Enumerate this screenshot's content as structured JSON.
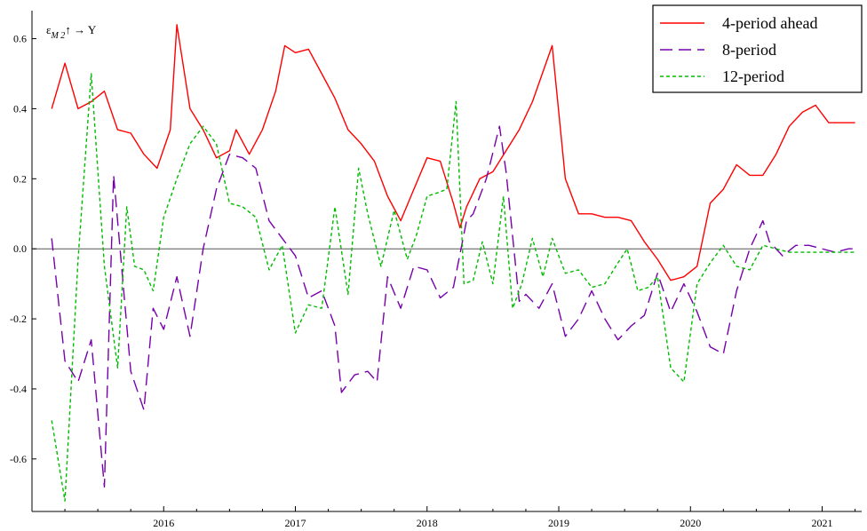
{
  "chart_data": {
    "type": "line",
    "ylabel": "ε_{M2}↑ → Y",
    "ylabel_parts": {
      "base": "ε",
      "sub": "M 2",
      "rest": "↑ → Y"
    },
    "xlim": [
      2015.0,
      2021.3
    ],
    "ylim": [
      -0.75,
      0.68
    ],
    "x_ticks": [
      2016,
      2017,
      2018,
      2019,
      2020,
      2021
    ],
    "y_ticks": [
      -0.6,
      -0.4,
      -0.2,
      0.0,
      0.2,
      0.4,
      0.6
    ],
    "y_tick_labels": [
      "-0.6",
      "-0.4",
      "-0.2",
      "0.0",
      "0.2",
      "0.4",
      "0.6"
    ],
    "zero_line": true,
    "legend_position": "top-right",
    "series": [
      {
        "name": "4-period ahead",
        "color": "#ff0000",
        "style": "solid",
        "x": [
          2015.15,
          2015.25,
          2015.35,
          2015.45,
          2015.55,
          2015.65,
          2015.75,
          2015.85,
          2015.95,
          2016.05,
          2016.1,
          2016.2,
          2016.3,
          2016.4,
          2016.5,
          2016.55,
          2016.65,
          2016.75,
          2016.85,
          2016.92,
          2017.0,
          2017.1,
          2017.2,
          2017.3,
          2017.4,
          2017.5,
          2017.6,
          2017.7,
          2017.8,
          2017.9,
          2018.0,
          2018.1,
          2018.2,
          2018.25,
          2018.3,
          2018.4,
          2018.5,
          2018.6,
          2018.7,
          2018.8,
          2018.95,
          2019.05,
          2019.15,
          2019.25,
          2019.35,
          2019.45,
          2019.55,
          2019.65,
          2019.75,
          2019.85,
          2019.95,
          2020.05,
          2020.15,
          2020.25,
          2020.35,
          2020.45,
          2020.55,
          2020.65,
          2020.75,
          2020.85,
          2020.95,
          2021.05,
          2021.15,
          2021.25
        ],
        "values": [
          0.4,
          0.53,
          0.4,
          0.42,
          0.45,
          0.34,
          0.33,
          0.27,
          0.23,
          0.34,
          0.64,
          0.4,
          0.34,
          0.26,
          0.28,
          0.34,
          0.27,
          0.34,
          0.45,
          0.58,
          0.56,
          0.57,
          0.5,
          0.43,
          0.34,
          0.3,
          0.25,
          0.15,
          0.08,
          0.17,
          0.26,
          0.25,
          0.13,
          0.06,
          0.12,
          0.2,
          0.22,
          0.28,
          0.34,
          0.42,
          0.58,
          0.2,
          0.1,
          0.1,
          0.09,
          0.09,
          0.08,
          0.02,
          -0.03,
          -0.09,
          -0.08,
          -0.05,
          0.13,
          0.17,
          0.24,
          0.21,
          0.21,
          0.27,
          0.35,
          0.39,
          0.41,
          0.36,
          0.36,
          0.36
        ]
      },
      {
        "name": "8-period",
        "color": "#7700aa",
        "style": "dashed",
        "x": [
          2015.15,
          2015.25,
          2015.35,
          2015.45,
          2015.55,
          2015.62,
          2015.75,
          2015.85,
          2015.92,
          2016.0,
          2016.1,
          2016.2,
          2016.3,
          2016.4,
          2016.5,
          2016.6,
          2016.7,
          2016.8,
          2016.9,
          2017.0,
          2017.1,
          2017.2,
          2017.3,
          2017.35,
          2017.45,
          2017.55,
          2017.62,
          2017.7,
          2017.8,
          2017.9,
          2018.0,
          2018.1,
          2018.2,
          2018.3,
          2018.35,
          2018.45,
          2018.55,
          2018.6,
          2018.7,
          2018.75,
          2018.85,
          2018.95,
          2019.05,
          2019.15,
          2019.25,
          2019.35,
          2019.45,
          2019.55,
          2019.65,
          2019.75,
          2019.85,
          2019.95,
          2020.05,
          2020.15,
          2020.25,
          2020.35,
          2020.45,
          2020.55,
          2020.6,
          2020.7,
          2020.8,
          2020.9,
          2021.0,
          2021.1,
          2021.2,
          2021.25
        ],
        "values": [
          0.03,
          -0.32,
          -0.38,
          -0.26,
          -0.68,
          0.21,
          -0.35,
          -0.46,
          -0.17,
          -0.23,
          -0.08,
          -0.25,
          0.0,
          0.17,
          0.27,
          0.26,
          0.23,
          0.08,
          0.03,
          -0.02,
          -0.14,
          -0.12,
          -0.22,
          -0.41,
          -0.36,
          -0.35,
          -0.38,
          -0.08,
          -0.17,
          -0.05,
          -0.06,
          -0.14,
          -0.11,
          0.08,
          0.1,
          0.2,
          0.35,
          0.22,
          -0.15,
          -0.13,
          -0.17,
          -0.1,
          -0.25,
          -0.2,
          -0.12,
          -0.2,
          -0.26,
          -0.22,
          -0.19,
          -0.07,
          -0.18,
          -0.1,
          -0.18,
          -0.28,
          -0.3,
          -0.12,
          0.0,
          0.08,
          0.02,
          -0.02,
          0.01,
          0.01,
          0.0,
          -0.01,
          0.0,
          0.0
        ]
      },
      {
        "name": "12-period",
        "color": "#00bb00",
        "style": "dotted",
        "x": [
          2015.15,
          2015.25,
          2015.35,
          2015.45,
          2015.55,
          2015.65,
          2015.72,
          2015.78,
          2015.85,
          2015.92,
          2016.0,
          2016.1,
          2016.2,
          2016.3,
          2016.4,
          2016.5,
          2016.6,
          2016.7,
          2016.8,
          2016.9,
          2017.0,
          2017.1,
          2017.2,
          2017.3,
          2017.4,
          2017.48,
          2017.55,
          2017.65,
          2017.75,
          2017.85,
          2017.92,
          2018.0,
          2018.08,
          2018.15,
          2018.22,
          2018.28,
          2018.35,
          2018.42,
          2018.5,
          2018.58,
          2018.65,
          2018.72,
          2018.8,
          2018.88,
          2018.95,
          2019.05,
          2019.15,
          2019.25,
          2019.35,
          2019.45,
          2019.52,
          2019.6,
          2019.68,
          2019.75,
          2019.85,
          2019.95,
          2020.05,
          2020.15,
          2020.25,
          2020.35,
          2020.45,
          2020.55,
          2020.65,
          2020.75,
          2020.85,
          2020.95,
          2021.05,
          2021.15,
          2021.25
        ],
        "values": [
          -0.49,
          -0.72,
          -0.03,
          0.5,
          -0.05,
          -0.34,
          0.12,
          -0.05,
          -0.06,
          -0.12,
          0.09,
          0.2,
          0.3,
          0.35,
          0.3,
          0.13,
          0.12,
          0.09,
          -0.06,
          0.01,
          -0.24,
          -0.16,
          -0.17,
          0.12,
          -0.13,
          0.23,
          0.1,
          -0.05,
          0.11,
          -0.03,
          0.04,
          0.15,
          0.16,
          0.17,
          0.42,
          -0.1,
          -0.09,
          0.02,
          -0.1,
          0.15,
          -0.17,
          -0.1,
          0.03,
          -0.08,
          0.03,
          -0.07,
          -0.06,
          -0.11,
          -0.1,
          -0.04,
          0.0,
          -0.12,
          -0.11,
          -0.08,
          -0.34,
          -0.38,
          -0.1,
          -0.04,
          0.01,
          -0.05,
          -0.06,
          0.01,
          0.0,
          -0.01,
          -0.01,
          -0.01,
          -0.01,
          -0.01,
          -0.01
        ]
      }
    ]
  }
}
